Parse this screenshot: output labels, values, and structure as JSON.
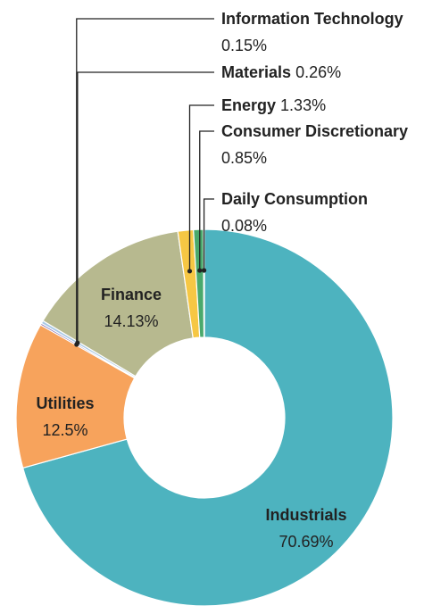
{
  "chart_data": {
    "type": "donut",
    "categories": [
      "Industrials",
      "Utilities",
      "Information Technology",
      "Materials",
      "Finance",
      "Energy",
      "Consumer Discretionary",
      "Daily Consumption"
    ],
    "values": [
      70.69,
      12.5,
      0.15,
      0.26,
      14.13,
      1.33,
      0.85,
      0.08
    ],
    "value_labels": [
      "70.69%",
      "12.5%",
      "0.15%",
      "0.26%",
      "14.13%",
      "1.33%",
      "0.85%",
      "0.08%"
    ],
    "colors": [
      "#4db3bf",
      "#f7a35c",
      "#6b4ea0",
      "#a9c9e6",
      "#b7b98f",
      "#f6c744",
      "#4aa96c",
      "#2e8b57"
    ]
  }
}
